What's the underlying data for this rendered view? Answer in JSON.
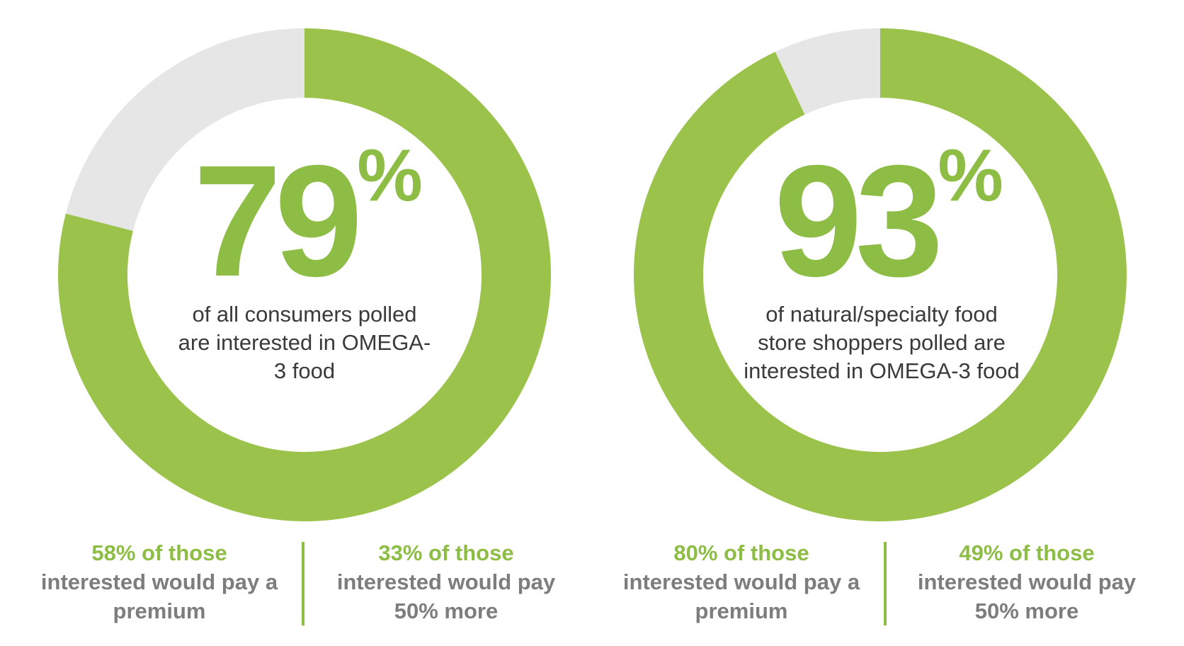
{
  "colors": {
    "accent": "#9bc34b",
    "remainder": "#e6e6e6",
    "number_text": "#8dbd45",
    "caption_text": "#3a3a3a",
    "stat_body_text": "#7d7d7d"
  },
  "chart_data": [
    {
      "type": "pie",
      "style": "donut",
      "slices": [
        {
          "value": 79
        },
        {
          "value": 21
        }
      ],
      "center_value": "79",
      "center_unit": "%",
      "caption": "of all consumers polled are interested in OMEGA-3 food",
      "stats": [
        {
          "head": "58% of those",
          "body": "interested would pay a premium"
        },
        {
          "head": "33% of those",
          "body": "interested would pay 50% more"
        }
      ]
    },
    {
      "type": "pie",
      "style": "donut",
      "slices": [
        {
          "value": 93
        },
        {
          "value": 7
        }
      ],
      "center_value": "93",
      "center_unit": "%",
      "caption": "of natural/specialty food store shoppers polled are interested in OMEGA-3 food",
      "stats": [
        {
          "head": "80% of those",
          "body": "interested would pay a premium"
        },
        {
          "head": "49% of those",
          "body": "interested would pay 50% more"
        }
      ]
    }
  ]
}
